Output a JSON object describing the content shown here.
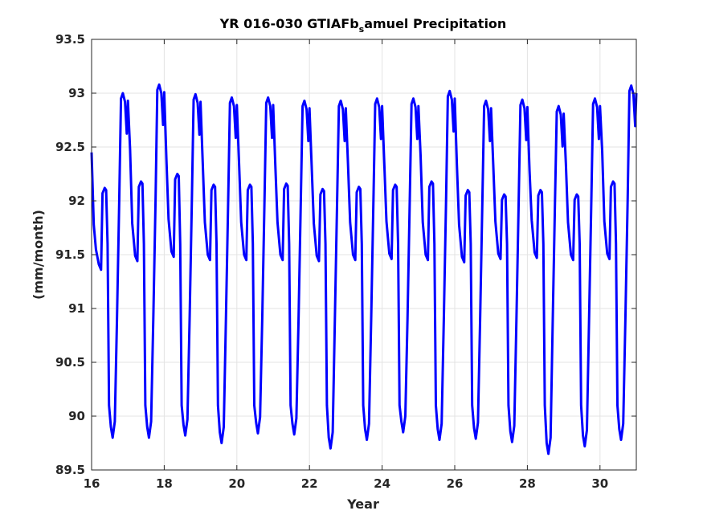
{
  "chart_data": {
    "type": "line",
    "title_parts": {
      "before": "YR 016-030 GTIAFb",
      "sub": "s",
      "after": "amuel Precipitation"
    },
    "xlabel": "Year",
    "ylabel": "(mm/month)",
    "xlim": [
      16,
      31
    ],
    "ylim": [
      89.5,
      93.5
    ],
    "xticks": [
      16,
      18,
      20,
      22,
      24,
      26,
      28,
      30
    ],
    "xtick_labels": [
      "16",
      "18",
      "20",
      "22",
      "24",
      "26",
      "28",
      "30"
    ],
    "yticks": [
      89.5,
      90,
      90.5,
      91,
      91.5,
      92,
      92.5,
      93,
      93.5
    ],
    "ytick_labels": [
      "89.5",
      "90",
      "90.5",
      "91",
      "91.5",
      "92",
      "92.5",
      "93",
      "93.5"
    ],
    "grid": true,
    "line_color": "#0000ff",
    "series": [
      {
        "years": [
          {
            "start": 16,
            "first": 92.45,
            "low": 91.36,
            "mid": 92.12,
            "min": 89.8,
            "peak": 93.0,
            "jan": 92.3
          },
          {
            "start": 17,
            "low": 91.44,
            "mid": 92.18,
            "min": 89.8,
            "peak": 93.08
          },
          {
            "start": 18,
            "low": 91.48,
            "mid": 92.25,
            "min": 89.82,
            "peak": 92.99
          },
          {
            "start": 19,
            "low": 91.45,
            "mid": 92.15,
            "min": 89.75,
            "peak": 92.96
          },
          {
            "start": 20,
            "low": 91.45,
            "mid": 92.15,
            "min": 89.84,
            "peak": 92.96
          },
          {
            "start": 21,
            "low": 91.45,
            "mid": 92.16,
            "min": 89.83,
            "peak": 92.93
          },
          {
            "start": 22,
            "low": 91.44,
            "mid": 92.11,
            "min": 89.7,
            "peak": 92.93
          },
          {
            "start": 23,
            "low": 91.45,
            "mid": 92.13,
            "min": 89.78,
            "peak": 92.95
          },
          {
            "start": 24,
            "low": 91.46,
            "mid": 92.15,
            "min": 89.85,
            "peak": 92.95
          },
          {
            "start": 25,
            "low": 91.45,
            "mid": 92.18,
            "min": 89.78,
            "peak": 93.02
          },
          {
            "start": 26,
            "low": 91.43,
            "mid": 92.1,
            "min": 89.79,
            "peak": 92.93
          },
          {
            "start": 27,
            "low": 91.46,
            "mid": 92.06,
            "min": 89.76,
            "peak": 92.94
          },
          {
            "start": 28,
            "low": 91.47,
            "mid": 92.1,
            "min": 89.65,
            "peak": 92.88
          },
          {
            "start": 29,
            "low": 91.45,
            "mid": 92.06,
            "min": 89.72,
            "peak": 92.95
          },
          {
            "start": 30,
            "low": 91.46,
            "mid": 92.18,
            "min": 89.78,
            "peak": 93.07,
            "end": 93.0
          }
        ]
      }
    ]
  }
}
